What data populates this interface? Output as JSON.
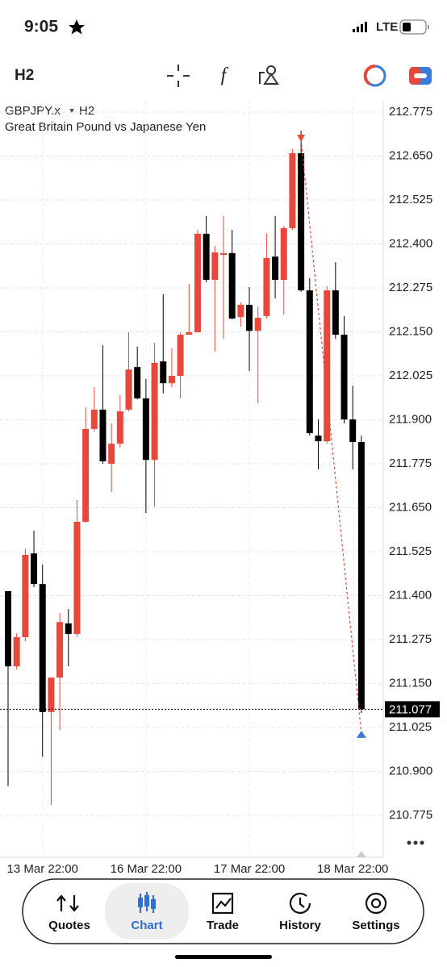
{
  "status_bar": {
    "time": "9:05",
    "network": "LTE"
  },
  "toolbar": {
    "timeframe": "H2"
  },
  "chart_data": {
    "type": "candlestick",
    "symbol": "GBPJPY.x",
    "timeframe": "H2",
    "subtitle": "Great Britain Pound vs Japanese Yen",
    "categories": [
      null,
      null,
      null,
      null,
      "13 Mar 22:00",
      null,
      null,
      null,
      null,
      null,
      null,
      null,
      null,
      null,
      null,
      null,
      "16 Mar 22:00",
      null,
      null,
      null,
      null,
      null,
      null,
      null,
      null,
      null,
      null,
      null,
      "17 Mar 22:00",
      null,
      null,
      null,
      null,
      null,
      null,
      null,
      null,
      null,
      null,
      null,
      "18 Mar 22:00",
      null
    ],
    "open": [
      211.413,
      211.199,
      211.282,
      211.52,
      211.433,
      211.069,
      211.167,
      211.321,
      211.291,
      211.61,
      211.874,
      211.929,
      211.775,
      211.832,
      211.929,
      212.05,
      211.961,
      211.786,
      212.066,
      212.004,
      212.025,
      212.142,
      212.149,
      212.429,
      212.298,
      212.369,
      212.374,
      212.192,
      212.227,
      212.153,
      212.195,
      212.364,
      212.298,
      212.445,
      212.658,
      212.268,
      211.855,
      211.839,
      212.268,
      212.142,
      211.901,
      211.837
    ],
    "high": [
      211.413,
      211.293,
      211.534,
      211.585,
      211.488,
      211.167,
      211.351,
      211.362,
      211.672,
      211.936,
      211.993,
      212.112,
      211.89,
      211.97,
      212.149,
      212.108,
      212.016,
      212.119,
      212.257,
      212.103,
      212.149,
      212.286,
      212.44,
      212.479,
      212.394,
      212.479,
      212.44,
      212.234,
      212.277,
      212.222,
      212.429,
      212.479,
      212.452,
      212.67,
      212.722,
      212.303,
      211.901,
      212.28,
      212.348,
      212.195,
      211.997,
      211.855
    ],
    "low": [
      210.858,
      211.19,
      211.27,
      211.424,
      210.942,
      210.805,
      211.018,
      211.199,
      211.282,
      211.608,
      211.867,
      211.775,
      211.695,
      211.821,
      211.924,
      211.958,
      211.635,
      211.653,
      211.975,
      211.993,
      211.961,
      212.142,
      212.153,
      212.291,
      212.094,
      212.13,
      212.186,
      212.165,
      212.039,
      211.947,
      212.188,
      212.245,
      212.199,
      212.44,
      212.264,
      211.855,
      211.759,
      211.832,
      212.13,
      211.89,
      211.759,
      211.066
    ],
    "close": [
      211.199,
      211.282,
      211.516,
      211.433,
      211.069,
      211.167,
      211.325,
      211.291,
      211.61,
      211.874,
      211.929,
      211.782,
      211.832,
      211.924,
      212.043,
      211.961,
      211.786,
      212.062,
      212.004,
      212.025,
      212.142,
      212.149,
      212.429,
      212.298,
      212.376,
      212.374,
      212.188,
      212.227,
      212.153,
      212.19,
      212.36,
      212.298,
      212.445,
      212.658,
      212.268,
      211.862,
      211.839,
      212.268,
      212.142,
      211.901,
      211.837,
      211.077
    ],
    "up_color": "#e8473b",
    "down_color": "#000000",
    "ylim": [
      210.656,
      212.807
    ],
    "yticks": [
      212.775,
      {
        "value": 212.65,
        "label": "212.650"
      },
      212.525,
      {
        "value": 212.4,
        "label": "212.400"
      },
      212.275,
      {
        "value": 212.15,
        "label": "212.150"
      },
      212.025,
      {
        "value": 211.9,
        "label": "211.900"
      },
      211.775,
      {
        "value": 211.65,
        "label": "211.650"
      },
      211.525,
      {
        "value": 211.4,
        "label": "211.400"
      },
      211.275,
      {
        "value": 211.15,
        "label": "211.150"
      },
      211.025,
      {
        "value": 210.9,
        "label": "210.900"
      },
      210.775
    ],
    "grid": true,
    "current_price": 211.077,
    "trade": {
      "entry": 212.697,
      "exit": 211.007
    }
  },
  "nav": {
    "items": [
      "Quotes",
      "Chart",
      "Trade",
      "History",
      "Settings"
    ],
    "active": 1
  }
}
